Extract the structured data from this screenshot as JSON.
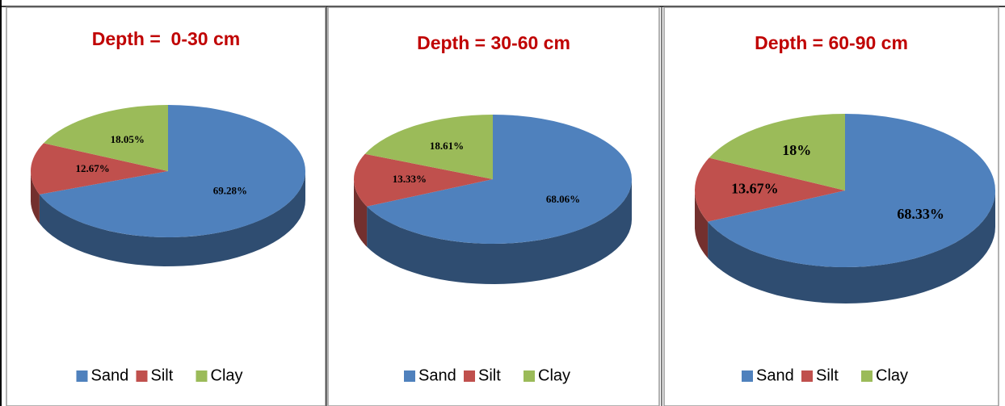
{
  "chart_data": [
    {
      "type": "pie",
      "title": "Depth =  0-30 cm",
      "categories": [
        "Sand",
        "Silt",
        "Clay"
      ],
      "values": [
        69.28,
        12.67,
        18.05
      ],
      "value_labels": [
        "69.28%",
        "12.67%",
        "18.05%"
      ],
      "colors": [
        "#4f81bd",
        "#c0504d",
        "#9bbb59"
      ]
    },
    {
      "type": "pie",
      "title": "Depth = 30-60 cm",
      "categories": [
        "Sand",
        "Silt",
        "Clay"
      ],
      "values": [
        68.06,
        13.33,
        18.61
      ],
      "value_labels": [
        "68.06%",
        "13.33%",
        "18.61%"
      ],
      "colors": [
        "#4f81bd",
        "#c0504d",
        "#9bbb59"
      ]
    },
    {
      "type": "pie",
      "title": "Depth = 60-90 cm",
      "categories": [
        "Sand",
        "Silt",
        "Clay"
      ],
      "values": [
        68.33,
        13.67,
        18
      ],
      "value_labels": [
        "68.33%",
        "13.67%",
        "18%"
      ],
      "colors": [
        "#4f81bd",
        "#c0504d",
        "#9bbb59"
      ]
    }
  ]
}
